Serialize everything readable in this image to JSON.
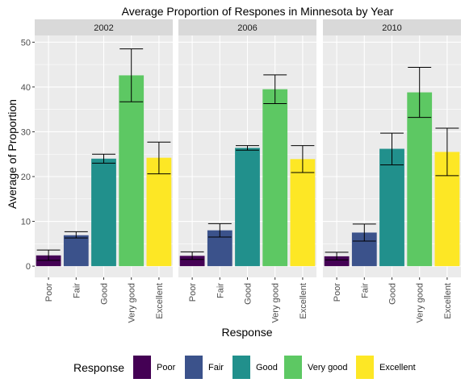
{
  "chart_data": {
    "type": "bar",
    "title": "Average Proportion of Respones in Minnesota by Year",
    "xlabel": "Response",
    "ylabel": "Average of Proportion",
    "ylim": [
      -2.5,
      51.5
    ],
    "yticks": [
      0,
      10,
      20,
      30,
      40,
      50
    ],
    "grid": true,
    "categories": [
      "Poor",
      "Fair",
      "Good",
      "Very good",
      "Excellent"
    ],
    "colors": [
      "#440154",
      "#3b528b",
      "#21908c",
      "#5dc863",
      "#fde725"
    ],
    "facets": [
      {
        "label": "2002",
        "values": [
          2.4,
          6.9,
          24.0,
          42.6,
          24.2
        ],
        "error_low": [
          1.3,
          6.3,
          23.0,
          36.7,
          20.6
        ],
        "error_high": [
          3.6,
          7.7,
          25.0,
          48.5,
          27.7
        ]
      },
      {
        "label": "2006",
        "values": [
          2.3,
          8.0,
          26.4,
          39.5,
          23.9
        ],
        "error_low": [
          1.5,
          6.5,
          25.9,
          36.3,
          20.9
        ],
        "error_high": [
          3.2,
          9.5,
          26.9,
          42.7,
          26.9
        ]
      },
      {
        "label": "2010",
        "values": [
          2.2,
          7.5,
          26.2,
          38.8,
          25.5
        ],
        "error_low": [
          1.4,
          5.6,
          22.6,
          33.2,
          20.2
        ],
        "error_high": [
          3.1,
          9.4,
          29.7,
          44.4,
          30.8
        ]
      }
    ],
    "legend": {
      "title": "Response",
      "placement": "bottom",
      "entries": [
        "Poor",
        "Fair",
        "Good",
        "Very good",
        "Excellent"
      ]
    }
  }
}
